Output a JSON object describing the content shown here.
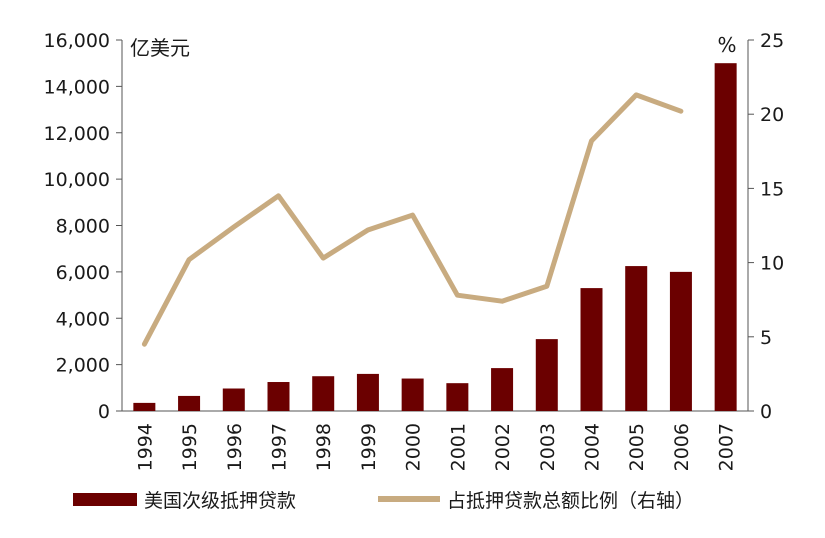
{
  "chart_data": {
    "type": "bar+line",
    "categories": [
      "1994",
      "1995",
      "1996",
      "1997",
      "1998",
      "1999",
      "2000",
      "2001",
      "2002",
      "2003",
      "2004",
      "2005",
      "2006",
      "2007"
    ],
    "series": [
      {
        "name": "美国次级抵押贷款",
        "type": "bar",
        "axis": "left",
        "color": "#6b0000",
        "values": [
          350,
          650,
          970,
          1250,
          1500,
          1600,
          1400,
          1200,
          1850,
          3100,
          5300,
          6250,
          6000,
          15000
        ]
      },
      {
        "name": "占抵押贷款总额比例（右轴）",
        "type": "line",
        "axis": "right",
        "color": "#c8ab80",
        "values": [
          4.5,
          10.2,
          12.4,
          14.5,
          10.3,
          12.2,
          13.2,
          7.8,
          7.4,
          8.4,
          18.2,
          21.3,
          20.2,
          null
        ]
      }
    ],
    "left_axis": {
      "unit": "亿美元",
      "ylim": [
        0,
        16000
      ],
      "ticks": [
        "0",
        "2,000",
        "4,000",
        "6,000",
        "8,000",
        "10,000",
        "12,000",
        "14,000",
        "16,000"
      ]
    },
    "right_axis": {
      "unit": "%",
      "ylim": [
        0,
        25
      ],
      "ticks": [
        "0",
        "5",
        "10",
        "15",
        "20",
        "25"
      ]
    },
    "grid": false,
    "legend_position": "bottom"
  }
}
